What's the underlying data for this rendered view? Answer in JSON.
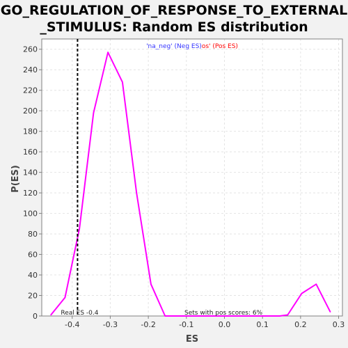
{
  "chart_data": {
    "type": "line",
    "title_line1": "GO_REGULATION_OF_RESPONSE_TO_EXTERNAL",
    "title_line2": "_STIMULUS: Random ES distribution",
    "xlabel": "ES",
    "ylabel": "P(ES)",
    "xlim": [
      -0.48,
      0.31
    ],
    "ylim": [
      0,
      270
    ],
    "x_ticks": [
      -0.4,
      -0.3,
      -0.2,
      -0.1,
      0.0,
      0.1,
      0.2,
      0.3
    ],
    "x_tick_labels": [
      "-0.4",
      "-0.3",
      "-0.2",
      "-0.1",
      "0.0",
      "0.1",
      "0.2",
      "0.3"
    ],
    "y_ticks": [
      0,
      20,
      40,
      60,
      80,
      100,
      120,
      140,
      160,
      180,
      200,
      220,
      240,
      260
    ],
    "grid": true,
    "series": [
      {
        "color": "#ff00ff",
        "x": [
          -0.456,
          -0.419,
          -0.381,
          -0.344,
          -0.306,
          -0.268,
          -0.231,
          -0.193,
          -0.156,
          -0.118,
          -0.08,
          -0.043,
          -0.005,
          0.032,
          0.07,
          0.108,
          0.145,
          0.166,
          0.203,
          0.241,
          0.278
        ],
        "y": [
          1,
          18,
          85,
          198,
          257,
          228,
          120,
          31,
          0,
          0,
          0,
          0,
          0,
          0,
          0,
          0,
          0,
          1,
          22,
          31,
          4
        ]
      }
    ],
    "real_es": -0.386,
    "real_es_label": "Real ES -0.4",
    "pos_scores_label": "Sets with pos scores: 6%",
    "legend": {
      "neg_text": "'na_neg' (Neg ES)",
      "pos_text": "os' (Pos ES)",
      "neg_color": "#3333ff",
      "pos_color": "#ff0000"
    },
    "colors": {
      "plot_bg": "#ffffff",
      "grid": "#e4e4e4",
      "axis": "#808080",
      "line": "#ff00ff",
      "real_es_line": "#000000"
    }
  }
}
